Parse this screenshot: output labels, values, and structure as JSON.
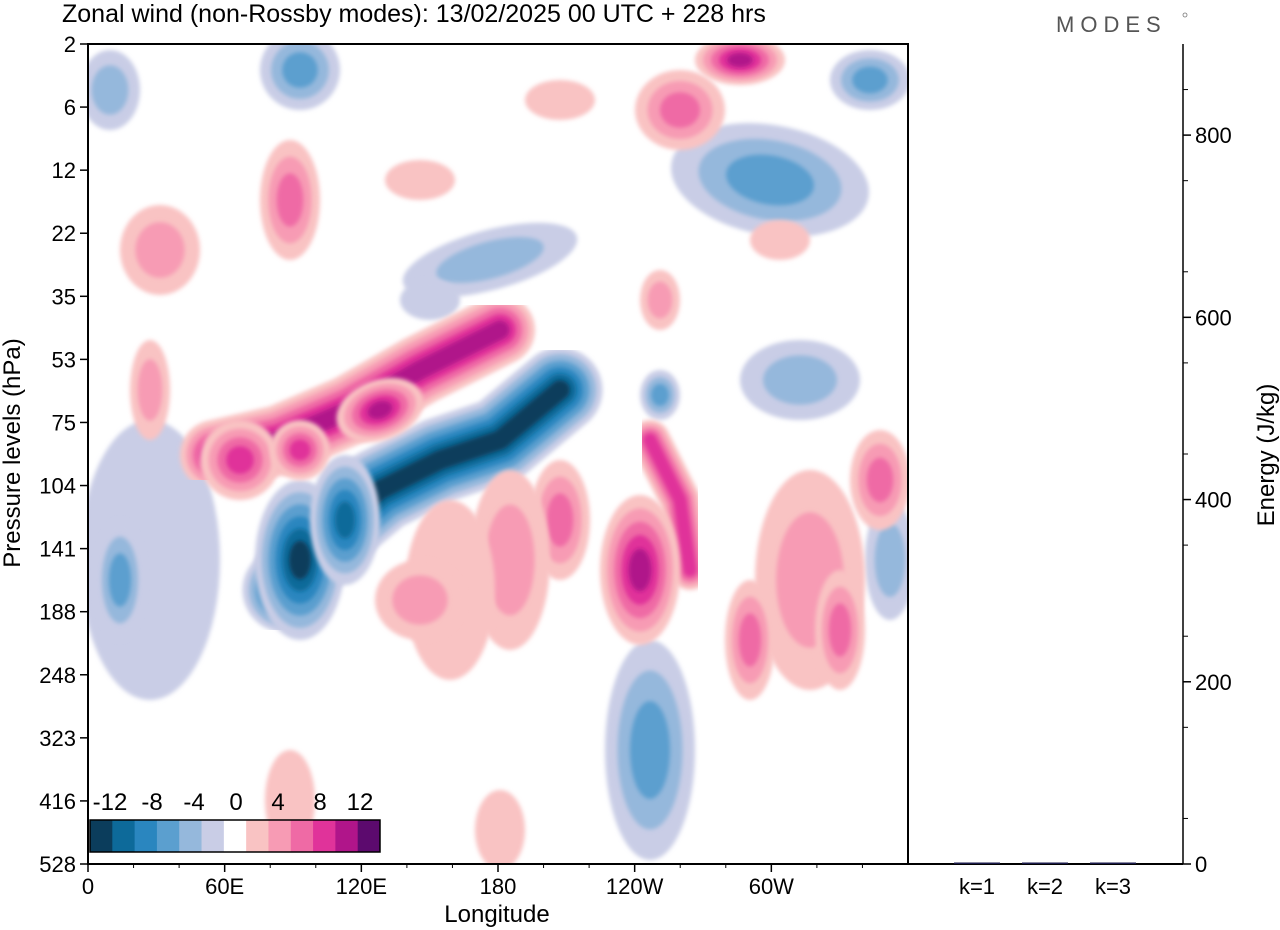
{
  "header": {
    "title": "Zonal wind (non-Rossby modes):  13/02/2025  00 UTC  + 228 hrs",
    "brand": "MODES"
  },
  "chart_data": [
    {
      "type": "heatmap",
      "title": "Zonal wind (non-Rossby modes):  13/02/2025  00 UTC  + 228 hrs",
      "xlabel": "Longitude",
      "ylabel": "Pressure levels (hPa)",
      "x_ticks": [
        "0",
        "60E",
        "120E",
        "180",
        "120W",
        "60W"
      ],
      "y_ticks": [
        "2",
        "6",
        "12",
        "22",
        "35",
        "53",
        "75",
        "104",
        "141",
        "188",
        "248",
        "323",
        "416",
        "528"
      ],
      "colorbar": {
        "labels": [
          "-12",
          "-8",
          "-4",
          "0",
          "4",
          "8",
          "12"
        ],
        "levels": [
          -14,
          -12,
          -10,
          -8,
          -6,
          -4,
          -2,
          2,
          4,
          6,
          8,
          10,
          12,
          14
        ],
        "colors": [
          "#0b3d5c",
          "#0d6a9a",
          "#2a86bf",
          "#5b9fcf",
          "#95b8dc",
          "#c9cde6",
          "#ffffff",
          "#f9c3c3",
          "#f79bb4",
          "#ef6aa5",
          "#e0339a",
          "#b0158a",
          "#5c0a6e"
        ]
      },
      "features": [
        {
          "name": "negative jet core",
          "lon": [
            90,
            180
          ],
          "level_hpa": [
            141,
            75
          ],
          "min_value": -12
        },
        {
          "name": "positive jet above",
          "lon": [
            60,
            150
          ],
          "level_hpa": [
            104,
            53
          ],
          "max_value": 10
        },
        {
          "name": "positive lobe near 120W",
          "lon": [
            230,
            250
          ],
          "level_hpa": [
            248,
            75
          ],
          "max_value": 12
        },
        {
          "name": "positive upper patch",
          "lon": [
            275,
            295
          ],
          "level_hpa": [
            2,
            2
          ],
          "max_value": 10
        },
        {
          "name": "negative upper patch",
          "lon": [
            340,
            360
          ],
          "level_hpa": [
            2,
            6
          ],
          "min_value": -8
        }
      ]
    },
    {
      "type": "bar",
      "categories": [
        "k=1",
        "k=2",
        "k=3"
      ],
      "values": [
        1.5,
        1.0,
        1.2
      ],
      "ylabel": "Energy (J/kg)",
      "ylim": [
        0,
        900
      ],
      "y_ticks": [
        "0",
        "200",
        "400",
        "600",
        "800"
      ],
      "bar_color": "#1a1a4a"
    }
  ]
}
